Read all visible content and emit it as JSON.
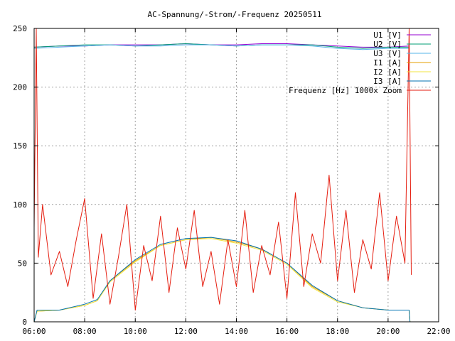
{
  "chart_data": {
    "type": "line",
    "title": "AC-Spannung/-Strom/-Frequenz 20250511",
    "xlabel": "",
    "ylabel": "",
    "xlim": [
      "06:00",
      "22:00"
    ],
    "ylim": [
      0,
      250
    ],
    "grid": true,
    "legend_position": "top-right",
    "x_ticks": [
      "06:00",
      "08:00",
      "10:00",
      "12:00",
      "14:00",
      "16:00",
      "18:00",
      "20:00",
      "22:00"
    ],
    "y_ticks": [
      0,
      50,
      100,
      150,
      200,
      250
    ],
    "series": [
      {
        "name": "U1 [V]",
        "color": "#9400d3",
        "x": [
          "06:00",
          "07:00",
          "08:00",
          "09:00",
          "10:00",
          "11:00",
          "12:00",
          "13:00",
          "14:00",
          "15:00",
          "16:00",
          "17:00",
          "18:00",
          "19:00",
          "20:00",
          "20:50"
        ],
        "values": [
          234,
          235,
          235,
          236,
          236,
          236,
          237,
          236,
          236,
          237,
          237,
          236,
          235,
          234,
          234,
          235
        ]
      },
      {
        "name": "U2 [V]",
        "color": "#009e73",
        "x": [
          "06:00",
          "07:00",
          "08:00",
          "09:00",
          "10:00",
          "11:00",
          "12:00",
          "13:00",
          "14:00",
          "15:00",
          "16:00",
          "17:00",
          "18:00",
          "19:00",
          "20:00",
          "20:50"
        ],
        "values": [
          234,
          235,
          236,
          236,
          235,
          236,
          237,
          236,
          235,
          236,
          236,
          236,
          234,
          233,
          234,
          234
        ]
      },
      {
        "name": "U3 [V]",
        "color": "#56b4e9",
        "x": [
          "06:00",
          "07:00",
          "08:00",
          "09:00",
          "10:00",
          "11:00",
          "12:00",
          "13:00",
          "14:00",
          "15:00",
          "16:00",
          "17:00",
          "18:00",
          "19:00",
          "20:00",
          "20:50"
        ],
        "values": [
          233,
          234,
          235,
          236,
          235,
          235,
          236,
          236,
          235,
          236,
          236,
          235,
          233,
          232,
          233,
          233
        ]
      },
      {
        "name": "I1 [A]",
        "color": "#e69f00",
        "x": [
          "06:00",
          "06:07",
          "07:00",
          "08:00",
          "08:30",
          "09:00",
          "10:00",
          "11:00",
          "12:00",
          "13:00",
          "14:00",
          "15:00",
          "15:30",
          "16:00",
          "17:00",
          "18:00",
          "19:00",
          "20:00",
          "20:50",
          "20:52"
        ],
        "values": [
          0,
          9,
          10,
          14,
          18,
          35,
          52,
          65,
          70,
          72,
          68,
          62,
          56,
          50,
          30,
          18,
          12,
          10,
          10,
          0
        ]
      },
      {
        "name": "I2 [A]",
        "color": "#f0e442",
        "x": [
          "06:00",
          "06:07",
          "07:00",
          "08:00",
          "08:30",
          "09:00",
          "10:00",
          "11:00",
          "12:00",
          "13:00",
          "14:00",
          "15:00",
          "15:30",
          "16:00",
          "17:00",
          "18:00",
          "19:00",
          "20:00",
          "20:50",
          "20:52"
        ],
        "values": [
          0,
          9,
          10,
          14,
          18,
          34,
          51,
          65,
          70,
          71,
          67,
          61,
          55,
          49,
          29,
          17,
          12,
          10,
          10,
          0
        ]
      },
      {
        "name": "I3 [A]",
        "color": "#0072b2",
        "x": [
          "06:00",
          "06:07",
          "07:00",
          "08:00",
          "08:30",
          "09:00",
          "10:00",
          "11:00",
          "12:00",
          "13:00",
          "14:00",
          "15:00",
          "15:30",
          "16:00",
          "17:00",
          "18:00",
          "19:00",
          "20:00",
          "20:50",
          "20:52"
        ],
        "values": [
          0,
          10,
          10,
          15,
          19,
          35,
          53,
          66,
          71,
          72,
          69,
          62,
          56,
          50,
          31,
          18,
          12,
          10,
          10,
          0
        ]
      },
      {
        "name": "Frequenz [Hz] 1000x Zoom",
        "color": "#e51e10",
        "x": [
          "06:00",
          "06:05",
          "06:10",
          "06:20",
          "06:40",
          "07:00",
          "07:20",
          "07:40",
          "08:00",
          "08:20",
          "08:40",
          "09:00",
          "09:20",
          "09:40",
          "10:00",
          "10:20",
          "10:40",
          "11:00",
          "11:20",
          "11:40",
          "12:00",
          "12:20",
          "12:40",
          "13:00",
          "13:20",
          "13:40",
          "14:00",
          "14:20",
          "14:40",
          "15:00",
          "15:20",
          "15:40",
          "16:00",
          "16:20",
          "16:40",
          "17:00",
          "17:20",
          "17:40",
          "18:00",
          "18:20",
          "18:40",
          "19:00",
          "19:20",
          "19:40",
          "20:00",
          "20:20",
          "20:40",
          "20:50",
          "20:55"
        ],
        "values": [
          80,
          250,
          55,
          100,
          40,
          60,
          30,
          70,
          105,
          20,
          75,
          15,
          55,
          100,
          10,
          65,
          35,
          90,
          25,
          80,
          45,
          95,
          30,
          60,
          15,
          70,
          30,
          95,
          25,
          65,
          40,
          85,
          20,
          110,
          30,
          75,
          50,
          125,
          35,
          95,
          25,
          70,
          45,
          110,
          35,
          90,
          50,
          250,
          40
        ]
      }
    ]
  }
}
